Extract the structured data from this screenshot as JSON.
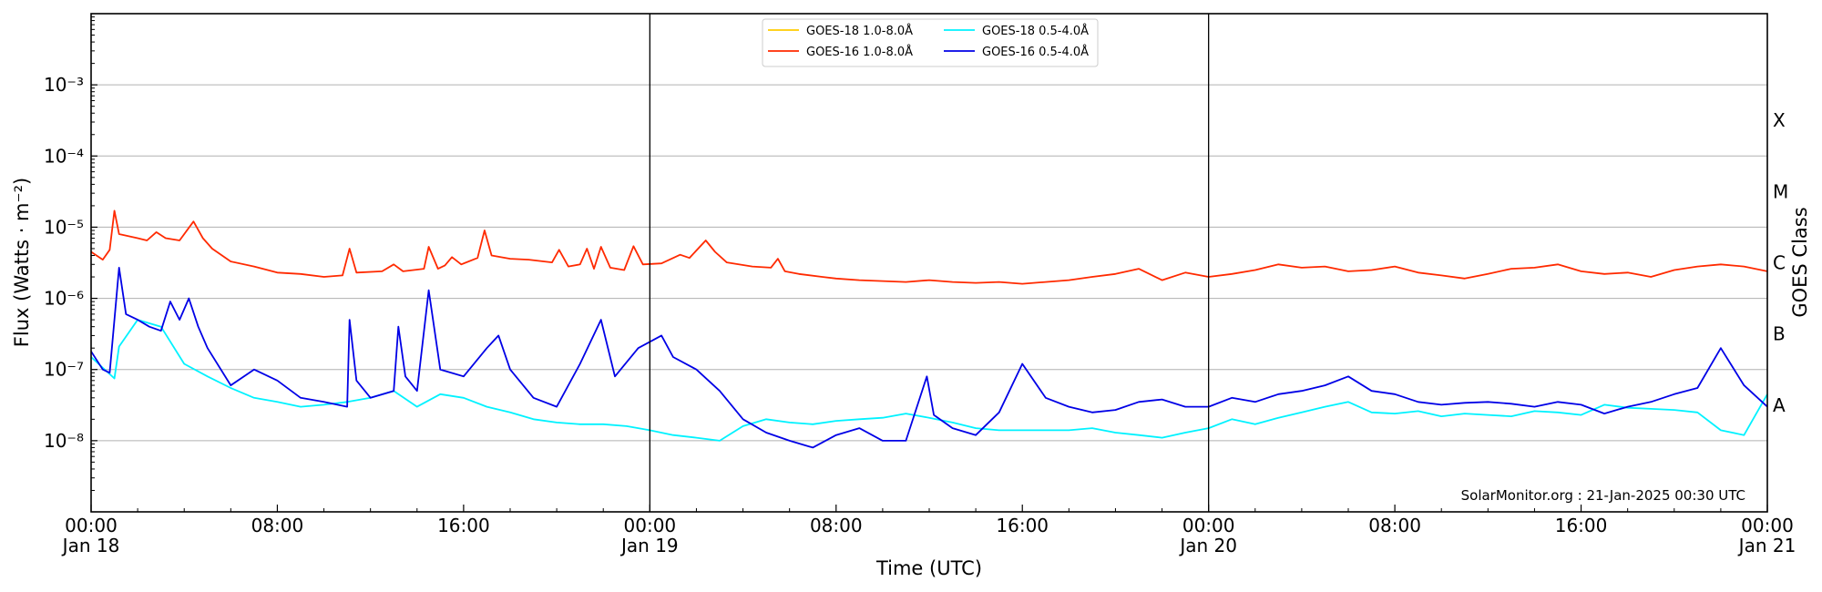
{
  "chart_data": {
    "type": "line",
    "xlabel": "Time (UTC)",
    "ylabel": "Flux (Watts · m⁻²)",
    "right_label": "GOES Class",
    "y_scale": "log",
    "ylim": [
      1e-09,
      0.01
    ],
    "xlim": [
      "2025-01-18T00:00",
      "2025-01-21T00:00"
    ],
    "grid": "horizontal at decades",
    "legend_placement": "top-center",
    "x_ticks": [
      {
        "t": 0,
        "line1": "00:00",
        "line2": "Jan 18"
      },
      {
        "t": 8,
        "line1": "08:00",
        "line2": ""
      },
      {
        "t": 16,
        "line1": "16:00",
        "line2": ""
      },
      {
        "t": 24,
        "line1": "00:00",
        "line2": "Jan 19"
      },
      {
        "t": 32,
        "line1": "08:00",
        "line2": ""
      },
      {
        "t": 40,
        "line1": "16:00",
        "line2": ""
      },
      {
        "t": 48,
        "line1": "00:00",
        "line2": "Jan 20"
      },
      {
        "t": 56,
        "line1": "08:00",
        "line2": ""
      },
      {
        "t": 64,
        "line1": "16:00",
        "line2": ""
      },
      {
        "t": 72,
        "line1": "00:00",
        "line2": "Jan 21"
      }
    ],
    "y_ticks": [
      {
        "exp": -8,
        "label": "10⁻⁸"
      },
      {
        "exp": -7,
        "label": "10⁻⁷"
      },
      {
        "exp": -6,
        "label": "10⁻⁶"
      },
      {
        "exp": -5,
        "label": "10⁻⁵"
      },
      {
        "exp": -4,
        "label": "10⁻⁴"
      },
      {
        "exp": -3,
        "label": "10⁻³"
      }
    ],
    "goes_classes": [
      {
        "label": "A",
        "exp": -7.5
      },
      {
        "label": "B",
        "exp": -6.5
      },
      {
        "label": "C",
        "exp": -5.5
      },
      {
        "label": "M",
        "exp": -4.5
      },
      {
        "label": "X",
        "exp": -3.5
      }
    ],
    "day_boundaries_hours": [
      24,
      48
    ],
    "series": [
      {
        "name": "GOES-18 1.0-8.0Å",
        "color": "#ffcc00",
        "points": []
      },
      {
        "name": "GOES-16 1.0-8.0Å",
        "color": "#ff2a00",
        "points": [
          [
            0,
            4.5e-06
          ],
          [
            0.5,
            3.5e-06
          ],
          [
            0.8,
            4.8e-06
          ],
          [
            1.0,
            1.7e-05
          ],
          [
            1.2,
            8e-06
          ],
          [
            1.6,
            7.5e-06
          ],
          [
            2,
            7e-06
          ],
          [
            2.4,
            6.5e-06
          ],
          [
            2.8,
            8.5e-06
          ],
          [
            3.2,
            7e-06
          ],
          [
            3.8,
            6.5e-06
          ],
          [
            4.4,
            1.2e-05
          ],
          [
            4.8,
            7e-06
          ],
          [
            5.2,
            5e-06
          ],
          [
            6,
            3.3e-06
          ],
          [
            7,
            2.8e-06
          ],
          [
            8,
            2.3e-06
          ],
          [
            9,
            2.2e-06
          ],
          [
            10,
            2e-06
          ],
          [
            10.8,
            2.1e-06
          ],
          [
            11.1,
            5e-06
          ],
          [
            11.4,
            2.3e-06
          ],
          [
            12.5,
            2.4e-06
          ],
          [
            13,
            3e-06
          ],
          [
            13.4,
            2.4e-06
          ],
          [
            14.3,
            2.6e-06
          ],
          [
            14.5,
            5.3e-06
          ],
          [
            14.9,
            2.6e-06
          ],
          [
            15.2,
            2.9e-06
          ],
          [
            15.5,
            3.8e-06
          ],
          [
            15.9,
            3e-06
          ],
          [
            16.6,
            3.7e-06
          ],
          [
            16.9,
            9e-06
          ],
          [
            17.2,
            4e-06
          ],
          [
            18,
            3.6e-06
          ],
          [
            18.8,
            3.5e-06
          ],
          [
            19.8,
            3.2e-06
          ],
          [
            20.1,
            4.8e-06
          ],
          [
            20.5,
            2.8e-06
          ],
          [
            21,
            3e-06
          ],
          [
            21.3,
            5e-06
          ],
          [
            21.6,
            2.6e-06
          ],
          [
            21.9,
            5.3e-06
          ],
          [
            22.3,
            2.7e-06
          ],
          [
            22.9,
            2.5e-06
          ],
          [
            23.3,
            5.4e-06
          ],
          [
            23.7,
            3e-06
          ],
          [
            24.5,
            3.1e-06
          ],
          [
            25.3,
            4.1e-06
          ],
          [
            25.7,
            3.7e-06
          ],
          [
            26.4,
            6.5e-06
          ],
          [
            26.8,
            4.5e-06
          ],
          [
            27.3,
            3.2e-06
          ],
          [
            28.4,
            2.8e-06
          ],
          [
            29.2,
            2.7e-06
          ],
          [
            29.5,
            3.6e-06
          ],
          [
            29.8,
            2.4e-06
          ],
          [
            30.4,
            2.2e-06
          ],
          [
            31.4,
            2e-06
          ],
          [
            32,
            1.9e-06
          ],
          [
            33,
            1.8e-06
          ],
          [
            34,
            1.75e-06
          ],
          [
            35,
            1.7e-06
          ],
          [
            36,
            1.8e-06
          ],
          [
            37,
            1.7e-06
          ],
          [
            38,
            1.65e-06
          ],
          [
            39,
            1.7e-06
          ],
          [
            40,
            1.6e-06
          ],
          [
            41,
            1.7e-06
          ],
          [
            42,
            1.8e-06
          ],
          [
            43,
            2e-06
          ],
          [
            44,
            2.2e-06
          ],
          [
            45,
            2.6e-06
          ],
          [
            46,
            1.8e-06
          ],
          [
            47,
            2.3e-06
          ],
          [
            48,
            2e-06
          ],
          [
            49,
            2.2e-06
          ],
          [
            50,
            2.5e-06
          ],
          [
            51,
            3e-06
          ],
          [
            52,
            2.7e-06
          ],
          [
            53,
            2.8e-06
          ],
          [
            54,
            2.4e-06
          ],
          [
            55,
            2.5e-06
          ],
          [
            56,
            2.8e-06
          ],
          [
            57,
            2.3e-06
          ],
          [
            58,
            2.1e-06
          ],
          [
            59,
            1.9e-06
          ],
          [
            60,
            2.2e-06
          ],
          [
            61,
            2.6e-06
          ],
          [
            62,
            2.7e-06
          ],
          [
            63,
            3e-06
          ],
          [
            64,
            2.4e-06
          ],
          [
            65,
            2.2e-06
          ],
          [
            66,
            2.3e-06
          ],
          [
            67,
            2e-06
          ],
          [
            68,
            2.5e-06
          ],
          [
            69,
            2.8e-06
          ],
          [
            70,
            3e-06
          ],
          [
            71,
            2.8e-06
          ],
          [
            72,
            2.4e-06
          ]
        ]
      },
      {
        "name": "GOES-18 0.5-4.0Å",
        "color": "#00f2ff",
        "points": [
          [
            0,
            1.5e-07
          ],
          [
            1,
            7.5e-08
          ],
          [
            1.2,
            2.1e-07
          ],
          [
            2,
            5e-07
          ],
          [
            3,
            4e-07
          ],
          [
            4,
            1.2e-07
          ],
          [
            5,
            8e-08
          ],
          [
            6,
            5.5e-08
          ],
          [
            7,
            4e-08
          ],
          [
            8,
            3.5e-08
          ],
          [
            9,
            3e-08
          ],
          [
            10,
            3.2e-08
          ],
          [
            11,
            3.5e-08
          ],
          [
            12,
            4e-08
          ],
          [
            13,
            5e-08
          ],
          [
            14,
            3e-08
          ],
          [
            15,
            4.5e-08
          ],
          [
            16,
            4e-08
          ],
          [
            17,
            3e-08
          ],
          [
            18,
            2.5e-08
          ],
          [
            19,
            2e-08
          ],
          [
            20,
            1.8e-08
          ],
          [
            21,
            1.7e-08
          ],
          [
            22,
            1.7e-08
          ],
          [
            23,
            1.6e-08
          ],
          [
            24,
            1.4e-08
          ],
          [
            25,
            1.2e-08
          ],
          [
            26,
            1.1e-08
          ],
          [
            27,
            1e-08
          ],
          [
            28,
            1.6e-08
          ],
          [
            29,
            2e-08
          ],
          [
            30,
            1.8e-08
          ],
          [
            31,
            1.7e-08
          ],
          [
            32,
            1.9e-08
          ],
          [
            33,
            2e-08
          ],
          [
            34,
            2.1e-08
          ],
          [
            35,
            2.4e-08
          ],
          [
            36,
            2.1e-08
          ],
          [
            37,
            1.8e-08
          ],
          [
            38,
            1.5e-08
          ],
          [
            39,
            1.4e-08
          ],
          [
            40,
            1.4e-08
          ],
          [
            41,
            1.4e-08
          ],
          [
            42,
            1.4e-08
          ],
          [
            43,
            1.5e-08
          ],
          [
            44,
            1.3e-08
          ],
          [
            45,
            1.2e-08
          ],
          [
            46,
            1.1e-08
          ],
          [
            47,
            1.3e-08
          ],
          [
            48,
            1.5e-08
          ],
          [
            49,
            2e-08
          ],
          [
            50,
            1.7e-08
          ],
          [
            51,
            2.1e-08
          ],
          [
            52,
            2.5e-08
          ],
          [
            53,
            3e-08
          ],
          [
            54,
            3.5e-08
          ],
          [
            55,
            2.5e-08
          ],
          [
            56,
            2.4e-08
          ],
          [
            57,
            2.6e-08
          ],
          [
            58,
            2.2e-08
          ],
          [
            59,
            2.4e-08
          ],
          [
            60,
            2.3e-08
          ],
          [
            61,
            2.2e-08
          ],
          [
            62,
            2.6e-08
          ],
          [
            63,
            2.5e-08
          ],
          [
            64,
            2.3e-08
          ],
          [
            65,
            3.2e-08
          ],
          [
            66,
            2.9e-08
          ],
          [
            67,
            2.8e-08
          ],
          [
            68,
            2.7e-08
          ],
          [
            69,
            2.5e-08
          ],
          [
            70,
            1.4e-08
          ],
          [
            71,
            1.2e-08
          ],
          [
            72,
            4.5e-08
          ]
        ]
      },
      {
        "name": "GOES-16 0.5-4.0Å",
        "color": "#0000e6",
        "points": [
          [
            0,
            1.8e-07
          ],
          [
            0.5,
            1e-07
          ],
          [
            0.8,
            9e-08
          ],
          [
            1.0,
            5e-07
          ],
          [
            1.2,
            2.7e-06
          ],
          [
            1.5,
            6e-07
          ],
          [
            2,
            5e-07
          ],
          [
            2.5,
            4e-07
          ],
          [
            3,
            3.5e-07
          ],
          [
            3.4,
            9e-07
          ],
          [
            3.8,
            5e-07
          ],
          [
            4.2,
            1e-06
          ],
          [
            4.6,
            4e-07
          ],
          [
            5,
            2e-07
          ],
          [
            6,
            6e-08
          ],
          [
            7,
            1e-07
          ],
          [
            8,
            7e-08
          ],
          [
            9,
            4e-08
          ],
          [
            10,
            3.5e-08
          ],
          [
            11,
            3e-08
          ],
          [
            11.1,
            5e-07
          ],
          [
            11.4,
            7e-08
          ],
          [
            12,
            4e-08
          ],
          [
            13,
            5e-08
          ],
          [
            13.2,
            4e-07
          ],
          [
            13.5,
            8e-08
          ],
          [
            14,
            5e-08
          ],
          [
            14.5,
            1.3e-06
          ],
          [
            15,
            1e-07
          ],
          [
            16,
            8e-08
          ],
          [
            17,
            2e-07
          ],
          [
            17.5,
            3e-07
          ],
          [
            18,
            1e-07
          ],
          [
            19,
            4e-08
          ],
          [
            20,
            3e-08
          ],
          [
            21,
            1.2e-07
          ],
          [
            21.9,
            5e-07
          ],
          [
            22.5,
            8e-08
          ],
          [
            23.5,
            2e-07
          ],
          [
            24.5,
            3e-07
          ],
          [
            25,
            1.5e-07
          ],
          [
            26,
            1e-07
          ],
          [
            27,
            5e-08
          ],
          [
            28,
            2e-08
          ],
          [
            29,
            1.3e-08
          ],
          [
            30,
            1e-08
          ],
          [
            31,
            8e-09
          ],
          [
            32,
            1.2e-08
          ],
          [
            33,
            1.5e-08
          ],
          [
            34,
            1e-08
          ],
          [
            35,
            1e-08
          ],
          [
            35.9,
            8e-08
          ],
          [
            36.2,
            2.3e-08
          ],
          [
            37,
            1.5e-08
          ],
          [
            38,
            1.2e-08
          ],
          [
            39,
            2.5e-08
          ],
          [
            40,
            1.2e-07
          ],
          [
            41,
            4e-08
          ],
          [
            42,
            3e-08
          ],
          [
            43,
            2.5e-08
          ],
          [
            44,
            2.7e-08
          ],
          [
            45,
            3.5e-08
          ],
          [
            46,
            3.8e-08
          ],
          [
            47,
            3e-08
          ],
          [
            48,
            3e-08
          ],
          [
            49,
            4e-08
          ],
          [
            50,
            3.5e-08
          ],
          [
            51,
            4.5e-08
          ],
          [
            52,
            5e-08
          ],
          [
            53,
            6e-08
          ],
          [
            54,
            8e-08
          ],
          [
            55,
            5e-08
          ],
          [
            56,
            4.5e-08
          ],
          [
            57,
            3.5e-08
          ],
          [
            58,
            3.2e-08
          ],
          [
            59,
            3.4e-08
          ],
          [
            60,
            3.5e-08
          ],
          [
            61,
            3.3e-08
          ],
          [
            62,
            3e-08
          ],
          [
            63,
            3.5e-08
          ],
          [
            64,
            3.2e-08
          ],
          [
            65,
            2.4e-08
          ],
          [
            66,
            3e-08
          ],
          [
            67,
            3.5e-08
          ],
          [
            68,
            4.5e-08
          ],
          [
            69,
            5.5e-08
          ],
          [
            70,
            2e-07
          ],
          [
            71,
            6e-08
          ],
          [
            72,
            3e-08
          ]
        ]
      }
    ],
    "credit": "SolarMonitor.org : 21-Jan-2025 00:30 UTC"
  }
}
